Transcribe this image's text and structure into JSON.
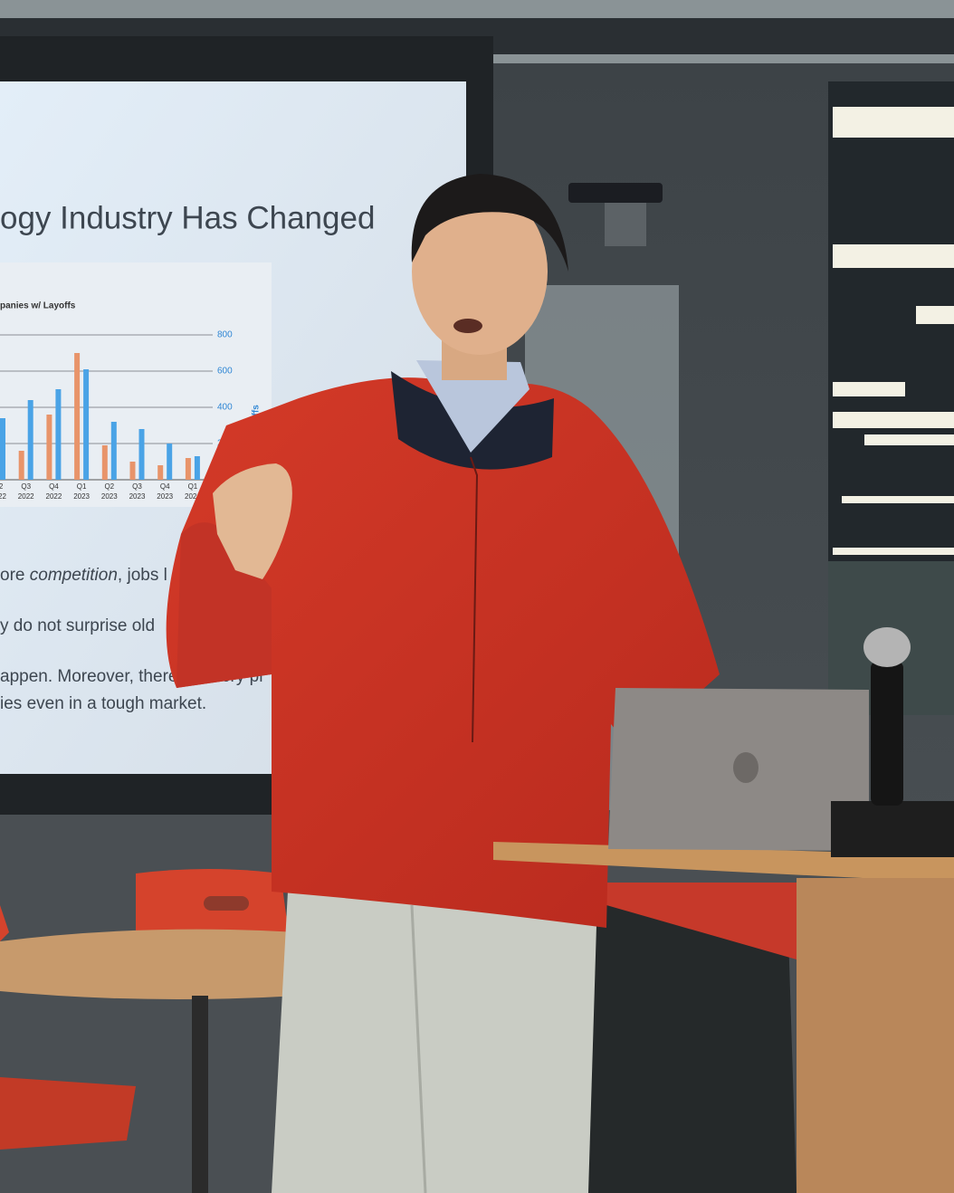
{
  "slide": {
    "title": "ogy Industry Has Changed",
    "chart": {
      "type": "bar",
      "title": "panies w/ Layoffs",
      "y_label": "Layoffs",
      "categories": [
        [
          "Q2",
          "2022"
        ],
        [
          "Q3",
          "2022"
        ],
        [
          "Q4",
          "2022"
        ],
        [
          "Q1",
          "2023"
        ],
        [
          "Q2",
          "2023"
        ],
        [
          "Q3",
          "2023"
        ],
        [
          "Q4",
          "2023"
        ],
        [
          "Q1",
          "2024"
        ]
      ],
      "series": [
        {
          "color": "#e8946a",
          "values": [
            null,
            160,
            360,
            700,
            190,
            100,
            80,
            120
          ]
        },
        {
          "color": "#4aa3e6",
          "values": [
            340,
            440,
            500,
            610,
            320,
            280,
            200,
            130
          ]
        }
      ],
      "ylim": [
        0,
        800
      ],
      "yticks": [
        200,
        400,
        600,
        800
      ],
      "grid": true
    },
    "body": [
      [
        "ore ",
        "competition",
        ", jobs l"
      ],
      [
        "y do not surprise old"
      ],
      [
        "appen. Moreover, there are very pr"
      ],
      [
        "ies even in a tough market."
      ]
    ]
  }
}
